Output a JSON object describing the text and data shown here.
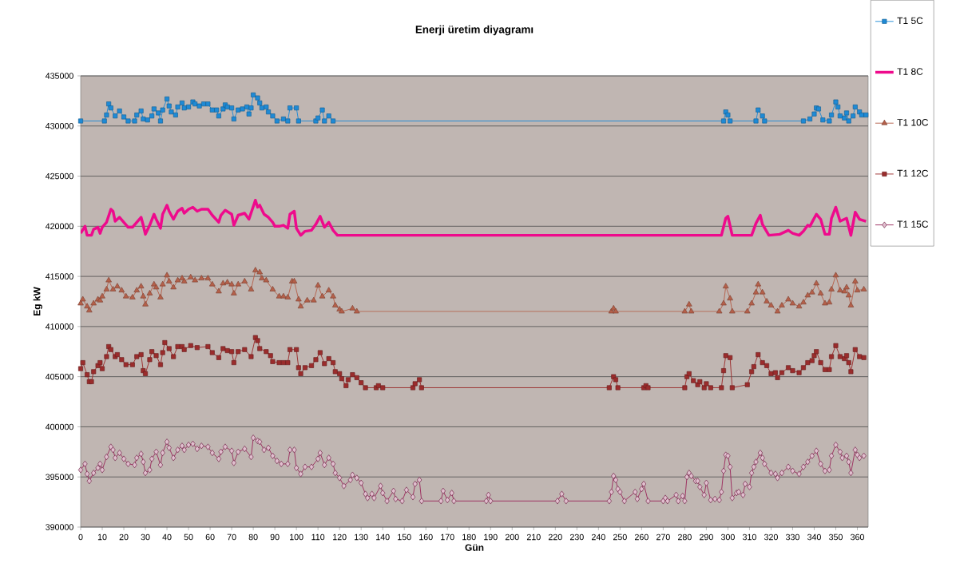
{
  "chart_data": {
    "type": "line",
    "title": "Enerji üretim diyagramı",
    "xlabel": "Gün",
    "ylabel": "Eg kW",
    "xlim": [
      0,
      365
    ],
    "xticks": [
      0,
      10,
      20,
      30,
      40,
      50,
      60,
      70,
      80,
      90,
      100,
      110,
      120,
      130,
      140,
      150,
      160,
      170,
      180,
      190,
      200,
      210,
      220,
      230,
      240,
      250,
      260,
      270,
      280,
      290,
      300,
      310,
      320,
      330,
      340,
      350,
      360
    ],
    "ylim": [
      390000,
      435000
    ],
    "yticks": [
      390000,
      395000,
      400000,
      405000,
      410000,
      415000,
      420000,
      425000,
      430000,
      435000
    ],
    "grid": "y",
    "legend": "right",
    "series": [
      {
        "name": "T1 5C",
        "color": "#1e8ad6",
        "marker": "square",
        "x": [
          0,
          11,
          12,
          13,
          14,
          16,
          18,
          20,
          22,
          25,
          26,
          28,
          29,
          31,
          33,
          34,
          36,
          37,
          38,
          40,
          41,
          42,
          44,
          45,
          47,
          48,
          50,
          52,
          53,
          55,
          57,
          59,
          61,
          63,
          64,
          66,
          67,
          68,
          70,
          71,
          73,
          75,
          77,
          78,
          79,
          80,
          82,
          83,
          84,
          86,
          87,
          89,
          91,
          94,
          96,
          97,
          100,
          101,
          109,
          110,
          112,
          113,
          115,
          117,
          298,
          299,
          300,
          301,
          313,
          314,
          316,
          317,
          335,
          338,
          340,
          341,
          342,
          344,
          347,
          348,
          350,
          351,
          352,
          354,
          355,
          356,
          358,
          359,
          361,
          362,
          364
        ],
        "values": [
          430500,
          430500,
          431100,
          432200,
          431800,
          431000,
          431500,
          430900,
          430500,
          430500,
          431100,
          431500,
          430700,
          430600,
          431000,
          431700,
          431300,
          430500,
          431600,
          432700,
          432000,
          431400,
          431100,
          431900,
          432300,
          431800,
          431900,
          432400,
          432200,
          432000,
          432200,
          432200,
          431600,
          431600,
          431000,
          431700,
          432100,
          431900,
          431800,
          430700,
          431600,
          431700,
          431900,
          431200,
          431800,
          433100,
          432800,
          432300,
          431800,
          431900,
          431400,
          431000,
          430500,
          430700,
          430500,
          431800,
          431800,
          430500,
          430500,
          430800,
          431600,
          430500,
          431000,
          430500,
          430500,
          431400,
          431100,
          430500,
          430500,
          431600,
          431000,
          430500,
          430500,
          430700,
          431200,
          431800,
          431700,
          430600,
          430500,
          431100,
          432400,
          431900,
          431000,
          430800,
          431300,
          430500,
          431000,
          431900,
          431400,
          431100,
          431100
        ]
      },
      {
        "name": "T1 8C",
        "color": "#ee0a8c",
        "marker": "none",
        "x": [
          0,
          2,
          3,
          5,
          6,
          8,
          9,
          10,
          12,
          14,
          15,
          16,
          18,
          20,
          22,
          24,
          26,
          28,
          29,
          30,
          32,
          34,
          35,
          37,
          38,
          40,
          41,
          43,
          45,
          47,
          48,
          50,
          52,
          54,
          56,
          59,
          61,
          64,
          65,
          67,
          70,
          71,
          73,
          76,
          78,
          81,
          82,
          83,
          85,
          87,
          89,
          90,
          92,
          94,
          96,
          97,
          99,
          100,
          102,
          104,
          107,
          109,
          111,
          113,
          115,
          117,
          119,
          297,
          299,
          300,
          302,
          311,
          312,
          313,
          315,
          316,
          319,
          324,
          328,
          330,
          333,
          335,
          337,
          338,
          341,
          343,
          345,
          347,
          348,
          350,
          352,
          355,
          357,
          359,
          361,
          364
        ],
        "values": [
          419300,
          420000,
          419100,
          419100,
          419700,
          419900,
          419300,
          419900,
          420400,
          421700,
          421500,
          420500,
          420900,
          420400,
          419900,
          419900,
          420400,
          420900,
          420100,
          419200,
          420100,
          421200,
          420700,
          419800,
          421200,
          422100,
          421500,
          420700,
          421500,
          421800,
          421300,
          421700,
          421900,
          421500,
          421700,
          421700,
          421100,
          420400,
          421100,
          421600,
          421200,
          420100,
          421100,
          421300,
          420700,
          422600,
          421900,
          422100,
          421200,
          420900,
          420400,
          420000,
          420000,
          420100,
          419800,
          421200,
          421500,
          419800,
          419100,
          419500,
          419600,
          420200,
          421000,
          419900,
          420400,
          419600,
          419100,
          419100,
          420800,
          421000,
          419100,
          419100,
          419700,
          420300,
          421100,
          420200,
          419100,
          419200,
          419600,
          419300,
          419100,
          419500,
          420100,
          420000,
          421200,
          420700,
          419200,
          419200,
          420800,
          421900,
          420500,
          420800,
          419100,
          421400,
          420700,
          420500
        ]
      },
      {
        "name": "T1 10C",
        "color": "#b5604a",
        "marker": "triangle",
        "x": [
          0,
          1,
          3,
          4,
          6,
          8,
          9,
          10,
          12,
          13,
          15,
          17,
          19,
          21,
          24,
          26,
          28,
          29,
          30,
          32,
          34,
          35,
          37,
          38,
          40,
          41,
          43,
          45,
          47,
          48,
          51,
          53,
          56,
          59,
          61,
          64,
          66,
          68,
          70,
          71,
          73,
          76,
          79,
          81,
          83,
          84,
          86,
          89,
          92,
          94,
          96,
          98,
          99,
          101,
          102,
          105,
          108,
          110,
          112,
          115,
          117,
          118,
          120,
          121,
          126,
          128,
          246,
          247,
          248,
          280,
          282,
          283,
          296,
          298,
          299,
          301,
          302,
          309,
          311,
          313,
          314,
          316,
          318,
          320,
          323,
          325,
          328,
          330,
          333,
          335,
          337,
          339,
          341,
          343,
          345,
          347,
          348,
          350,
          352,
          354,
          355,
          356,
          357,
          359,
          360,
          363
        ],
        "values": [
          412300,
          412700,
          412000,
          411600,
          412300,
          412700,
          412600,
          413000,
          413700,
          414600,
          413700,
          414000,
          413600,
          413000,
          412900,
          413600,
          414000,
          413000,
          412200,
          413300,
          414200,
          413900,
          412900,
          414200,
          415100,
          414500,
          413900,
          414600,
          414800,
          414500,
          414900,
          414600,
          414800,
          414800,
          414200,
          413500,
          414300,
          414400,
          414200,
          413300,
          414200,
          414500,
          413700,
          415600,
          415400,
          414800,
          414600,
          413700,
          413000,
          413000,
          412900,
          414500,
          414500,
          412700,
          412000,
          412600,
          412600,
          414100,
          413000,
          413600,
          413000,
          412100,
          411700,
          411500,
          411800,
          411500,
          411500,
          411800,
          411500,
          411500,
          412200,
          411500,
          411500,
          412300,
          414000,
          412800,
          411500,
          411500,
          412300,
          413400,
          414200,
          413400,
          412500,
          412100,
          411500,
          412100,
          412700,
          412300,
          412000,
          412400,
          413100,
          413400,
          414300,
          413300,
          412300,
          412400,
          413700,
          415100,
          413600,
          413500,
          413900,
          413100,
          412100,
          414500,
          413600,
          413700
        ]
      },
      {
        "name": "T1 12C",
        "color": "#9b2c2c",
        "marker": "square",
        "x": [
          0,
          1,
          3,
          4,
          5,
          6,
          8,
          9,
          10,
          12,
          13,
          14,
          16,
          17,
          19,
          21,
          24,
          26,
          28,
          29,
          30,
          32,
          33,
          35,
          37,
          38,
          39,
          41,
          43,
          45,
          47,
          48,
          51,
          54,
          59,
          61,
          64,
          66,
          68,
          70,
          71,
          73,
          76,
          79,
          81,
          82,
          83,
          86,
          88,
          89,
          92,
          94,
          96,
          97,
          100,
          101,
          102,
          104,
          107,
          109,
          111,
          113,
          115,
          117,
          118,
          120,
          121,
          123,
          124,
          126,
          128,
          130,
          132,
          137,
          138,
          140,
          154,
          155,
          157,
          158,
          245,
          247,
          248,
          249,
          261,
          262,
          263,
          280,
          281,
          282,
          284,
          286,
          287,
          289,
          290,
          292,
          297,
          298,
          299,
          301,
          302,
          309,
          311,
          312,
          314,
          316,
          318,
          320,
          322,
          323,
          325,
          328,
          330,
          333,
          335,
          337,
          339,
          340,
          341,
          343,
          345,
          347,
          348,
          350,
          352,
          354,
          355,
          356,
          357,
          359,
          361,
          363
        ],
        "values": [
          405800,
          406400,
          405200,
          404500,
          404500,
          405500,
          406100,
          406400,
          405800,
          407000,
          408000,
          407700,
          407000,
          407200,
          406700,
          406200,
          406200,
          407000,
          407200,
          405600,
          405300,
          406700,
          407500,
          407100,
          406200,
          407400,
          408400,
          407800,
          407000,
          408000,
          408000,
          407700,
          408100,
          407900,
          408000,
          407400,
          406900,
          407800,
          407600,
          407500,
          406400,
          407500,
          407700,
          407000,
          408900,
          408600,
          407800,
          407500,
          407100,
          406500,
          406400,
          406400,
          406400,
          407700,
          407700,
          405900,
          405300,
          405900,
          406100,
          406700,
          407400,
          406300,
          406800,
          406400,
          405500,
          405300,
          404800,
          404100,
          404700,
          405200,
          404900,
          404400,
          403900,
          403900,
          404100,
          403900,
          403900,
          404300,
          404700,
          403900,
          403900,
          405000,
          404700,
          403900,
          403900,
          404100,
          403900,
          403900,
          405000,
          405300,
          404600,
          404200,
          404500,
          403900,
          404300,
          403900,
          403900,
          405600,
          407100,
          406900,
          403900,
          404200,
          405500,
          406000,
          407200,
          406400,
          406100,
          405300,
          405400,
          404900,
          405400,
          405900,
          405600,
          405400,
          405900,
          406400,
          406600,
          407100,
          407500,
          406400,
          405700,
          405700,
          407000,
          408100,
          407000,
          406800,
          407100,
          406400,
          405500,
          407700,
          407000,
          406900
        ]
      },
      {
        "name": "T1 15C",
        "color": "#9c2b5e",
        "marker": "diamond",
        "x": [
          0,
          2,
          3,
          4,
          6,
          8,
          9,
          10,
          12,
          14,
          15,
          16,
          18,
          20,
          22,
          25,
          26,
          28,
          29,
          30,
          32,
          33,
          35,
          37,
          38,
          40,
          41,
          43,
          45,
          47,
          48,
          50,
          52,
          54,
          56,
          59,
          61,
          64,
          65,
          67,
          70,
          71,
          73,
          76,
          79,
          80,
          82,
          83,
          85,
          87,
          89,
          91,
          93,
          96,
          97,
          99,
          100,
          102,
          104,
          107,
          110,
          111,
          113,
          115,
          117,
          118,
          120,
          122,
          125,
          126,
          128,
          130,
          132,
          133,
          135,
          136,
          139,
          140,
          142,
          145,
          146,
          149,
          151,
          154,
          155,
          157,
          158,
          167,
          168,
          170,
          172,
          173,
          188,
          189,
          190,
          221,
          223,
          225,
          245,
          246,
          247,
          248,
          249,
          250,
          252,
          257,
          258,
          260,
          261,
          263,
          270,
          271,
          272,
          276,
          277,
          279,
          280,
          281,
          282,
          283,
          285,
          286,
          287,
          289,
          290,
          292,
          294,
          296,
          297,
          298,
          299,
          300,
          301,
          302,
          304,
          305,
          307,
          308,
          310,
          311,
          312,
          313,
          315,
          316,
          317,
          320,
          322,
          323,
          325,
          328,
          330,
          333,
          335,
          337,
          339,
          341,
          343,
          345,
          347,
          348,
          350,
          352,
          353,
          355,
          356,
          357,
          359,
          360,
          361,
          363
        ],
        "values": [
          395700,
          396300,
          395300,
          394600,
          395400,
          395900,
          396300,
          395700,
          397000,
          398000,
          397700,
          396900,
          397400,
          396800,
          396300,
          396200,
          396900,
          397300,
          396500,
          395400,
          395700,
          396800,
          397500,
          396200,
          397400,
          398500,
          397900,
          396900,
          397700,
          398100,
          397700,
          398200,
          398300,
          397800,
          398100,
          398000,
          397400,
          396800,
          397500,
          398000,
          397600,
          396400,
          397500,
          397800,
          397000,
          398900,
          398600,
          398500,
          397700,
          397900,
          397100,
          396600,
          396300,
          396300,
          397700,
          397700,
          395900,
          395300,
          396000,
          396000,
          396800,
          397400,
          396200,
          396900,
          396300,
          395400,
          394900,
          394100,
          394700,
          395200,
          394900,
          394400,
          393300,
          392900,
          393300,
          392900,
          394100,
          393400,
          392600,
          393600,
          392800,
          392600,
          393700,
          393000,
          394300,
          394700,
          392600,
          392600,
          393600,
          392700,
          393400,
          392600,
          392600,
          393200,
          392600,
          392600,
          393300,
          392600,
          392600,
          393500,
          395100,
          394700,
          393800,
          393500,
          392600,
          393500,
          392800,
          393800,
          394300,
          392600,
          392600,
          392900,
          392600,
          393200,
          392600,
          393100,
          392600,
          395000,
          395400,
          395100,
          394600,
          394600,
          394000,
          393200,
          394400,
          392700,
          392800,
          392700,
          393500,
          395600,
          397200,
          397100,
          396000,
          392900,
          393400,
          393500,
          393200,
          394300,
          394000,
          395400,
          396000,
          396500,
          397400,
          396900,
          396300,
          395400,
          395300,
          394900,
          395400,
          396000,
          395600,
          395300,
          396000,
          396500,
          397100,
          397600,
          396300,
          395600,
          395700,
          397100,
          398200,
          397500,
          396900,
          397100,
          396500,
          395400,
          397700,
          397200,
          396900,
          397100
        ]
      }
    ]
  }
}
